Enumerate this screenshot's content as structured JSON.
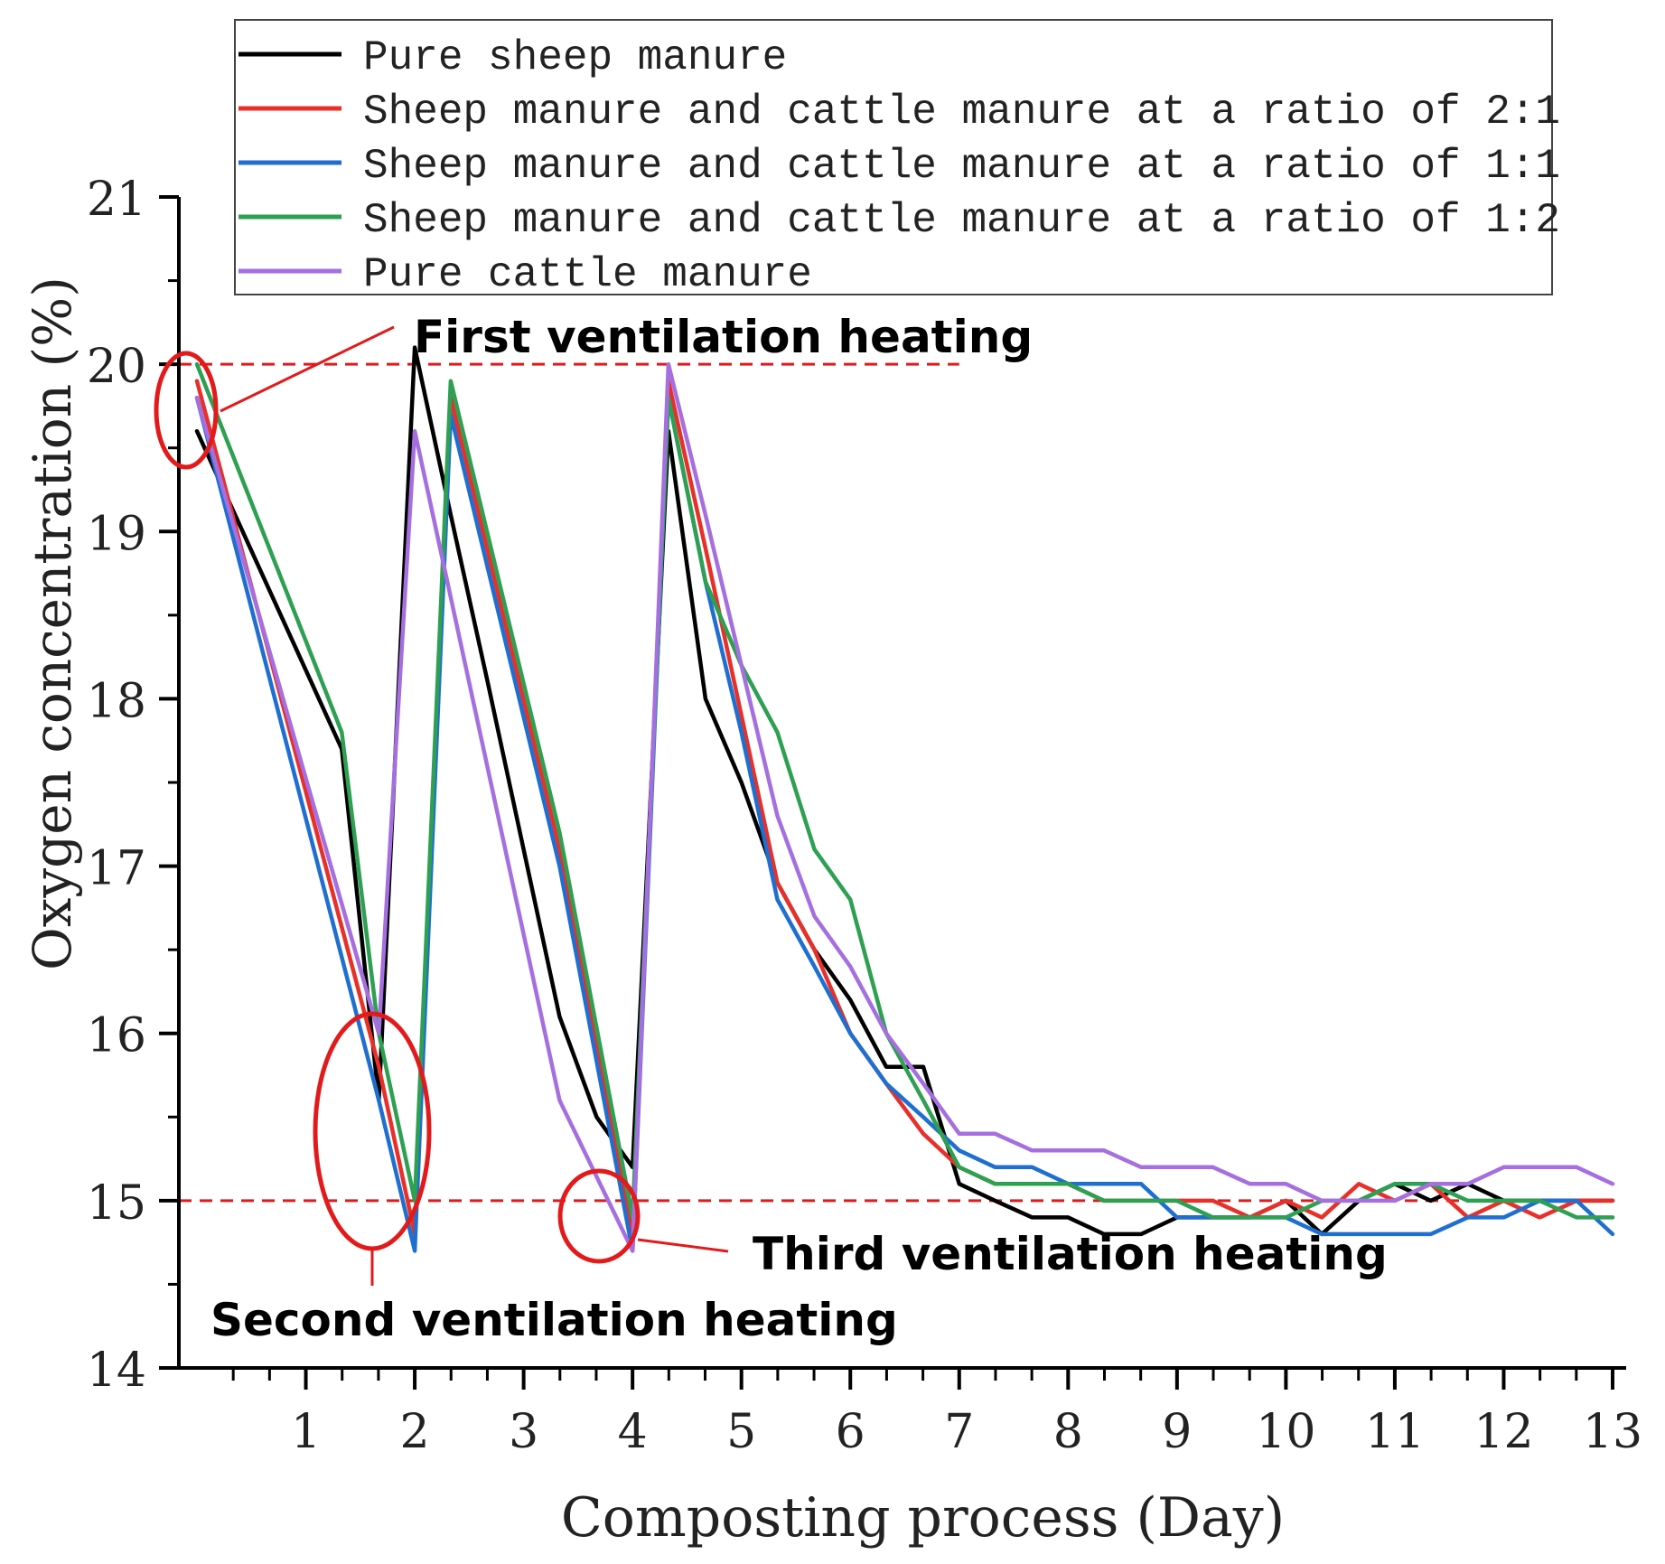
{
  "chart_data": {
    "type": "line",
    "title": "",
    "xlabel": "Composting process (Day)",
    "ylabel": "Oxygen concentration (%)",
    "xlim": [
      0,
      13
    ],
    "ylim": [
      14,
      21
    ],
    "xticks": [
      "1",
      "2",
      "3",
      "4",
      "5",
      "6",
      "7",
      "8",
      "9",
      "10",
      "11",
      "12",
      "13"
    ],
    "yticks": [
      "14",
      "15",
      "16",
      "17",
      "18",
      "19",
      "20",
      "21"
    ],
    "grid": false,
    "legend_position": "top",
    "reference_lines": [
      {
        "y": 20,
        "color": "#e31a1c",
        "style": "dashed",
        "x_range": [
          0,
          7
        ]
      },
      {
        "y": 15,
        "color": "#e31a1c",
        "style": "dashed",
        "x_range": [
          0,
          13
        ]
      }
    ],
    "annotations": [
      {
        "label": "First ventilation heating",
        "x": 0.2,
        "y": 19.8
      },
      {
        "label": "Second ventilation heating",
        "x": 1.9,
        "y": 15.4
      },
      {
        "label": "Third ventilation heating",
        "x": 3.95,
        "y": 14.9
      }
    ],
    "series": [
      {
        "name": "Pure sheep manure",
        "color": "#000000",
        "x": [
          0.0,
          1.33,
          1.67,
          2.0,
          2.33,
          2.67,
          3.0,
          3.33,
          3.67,
          4.0,
          4.33,
          4.67,
          5.0,
          5.33,
          5.67,
          6.0,
          6.33,
          6.67,
          7.0,
          7.33,
          7.67,
          8.0,
          8.33,
          8.67,
          9.0,
          9.33,
          9.67,
          10.0,
          10.33,
          10.67,
          11.0,
          11.33,
          11.67,
          12.0,
          12.33,
          12.67,
          13.0
        ],
        "values": [
          19.6,
          17.7,
          15.6,
          20.1,
          19.1,
          18.1,
          17.1,
          16.1,
          15.5,
          15.2,
          19.6,
          18.0,
          17.5,
          16.9,
          16.5,
          16.2,
          15.8,
          15.8,
          15.1,
          15.0,
          14.9,
          14.9,
          14.8,
          14.8,
          14.9,
          14.9,
          14.9,
          15.0,
          14.8,
          15.0,
          15.1,
          15.0,
          15.1,
          15.0,
          15.0,
          15.0,
          15.0
        ]
      },
      {
        "name": "Sheep manure and cattle manure at a ratio of 2:1",
        "color": "#e8302a",
        "x": [
          0.0,
          1.67,
          2.0,
          2.33,
          3.33,
          4.0,
          4.33,
          4.67,
          5.0,
          5.33,
          5.67,
          6.0,
          6.33,
          6.67,
          7.0,
          7.33,
          7.67,
          8.0,
          8.33,
          8.67,
          9.0,
          9.33,
          9.67,
          10.0,
          10.33,
          10.67,
          11.0,
          11.33,
          11.67,
          12.0,
          12.33,
          12.67,
          13.0
        ],
        "values": [
          19.9,
          15.8,
          14.8,
          19.8,
          17.1,
          14.8,
          19.9,
          18.9,
          17.9,
          16.9,
          16.5,
          16.0,
          15.7,
          15.4,
          15.2,
          15.1,
          15.1,
          15.1,
          15.0,
          15.0,
          15.0,
          15.0,
          14.9,
          15.0,
          14.9,
          15.1,
          15.0,
          15.1,
          14.9,
          15.0,
          14.9,
          15.0,
          15.0
        ]
      },
      {
        "name": "Sheep manure and cattle manure at a ratio of 1:1",
        "color": "#1f6fd1",
        "x": [
          0.0,
          1.67,
          2.0,
          2.33,
          3.33,
          4.0,
          4.33,
          4.67,
          5.0,
          5.33,
          5.67,
          6.0,
          6.33,
          6.67,
          7.0,
          7.33,
          7.67,
          8.0,
          8.33,
          8.67,
          9.0,
          9.33,
          9.67,
          10.0,
          10.33,
          10.67,
          11.0,
          11.33,
          11.67,
          12.0,
          12.33,
          12.67,
          13.0
        ],
        "values": [
          19.8,
          15.6,
          14.7,
          19.7,
          17.0,
          14.7,
          19.8,
          18.7,
          17.8,
          16.8,
          16.4,
          16.0,
          15.7,
          15.5,
          15.3,
          15.2,
          15.2,
          15.1,
          15.1,
          15.1,
          14.9,
          14.9,
          14.9,
          14.9,
          14.8,
          14.8,
          14.8,
          14.8,
          14.9,
          14.9,
          15.0,
          15.0,
          14.8
        ]
      },
      {
        "name": "Sheep manure and cattle manure at a ratio of 1:2",
        "color": "#2ea052",
        "x": [
          0.0,
          1.33,
          1.67,
          2.0,
          2.33,
          3.33,
          4.0,
          4.33,
          4.67,
          5.0,
          5.33,
          5.67,
          6.0,
          6.33,
          6.67,
          7.0,
          7.33,
          7.67,
          8.0,
          8.33,
          8.67,
          9.0,
          9.33,
          9.67,
          10.0,
          10.33,
          10.67,
          11.0,
          11.33,
          11.67,
          12.0,
          12.33,
          12.67,
          13.0
        ],
        "values": [
          20.0,
          17.8,
          16.0,
          15.0,
          19.9,
          17.2,
          14.9,
          19.8,
          18.7,
          18.2,
          17.8,
          17.1,
          16.8,
          16.0,
          15.6,
          15.2,
          15.1,
          15.1,
          15.1,
          15.0,
          15.0,
          15.0,
          14.9,
          14.9,
          14.9,
          15.0,
          15.0,
          15.1,
          15.1,
          15.0,
          15.0,
          15.0,
          14.9,
          14.9
        ]
      },
      {
        "name": "Pure cattle manure",
        "color": "#a56fe0",
        "x": [
          0.0,
          1.67,
          2.0,
          3.33,
          4.0,
          4.33,
          4.67,
          5.0,
          5.33,
          5.67,
          6.0,
          6.33,
          6.67,
          7.0,
          7.33,
          7.67,
          8.0,
          8.33,
          8.67,
          9.0,
          9.33,
          9.67,
          10.0,
          10.33,
          10.67,
          11.0,
          11.33,
          11.67,
          12.0,
          12.33,
          12.67,
          13.0
        ],
        "values": [
          19.8,
          16.0,
          19.6,
          15.6,
          14.7,
          20.0,
          19.1,
          18.2,
          17.3,
          16.7,
          16.4,
          16.0,
          15.7,
          15.4,
          15.4,
          15.3,
          15.3,
          15.3,
          15.2,
          15.2,
          15.2,
          15.1,
          15.1,
          15.0,
          15.0,
          15.0,
          15.1,
          15.1,
          15.2,
          15.2,
          15.2,
          15.1
        ]
      }
    ]
  }
}
